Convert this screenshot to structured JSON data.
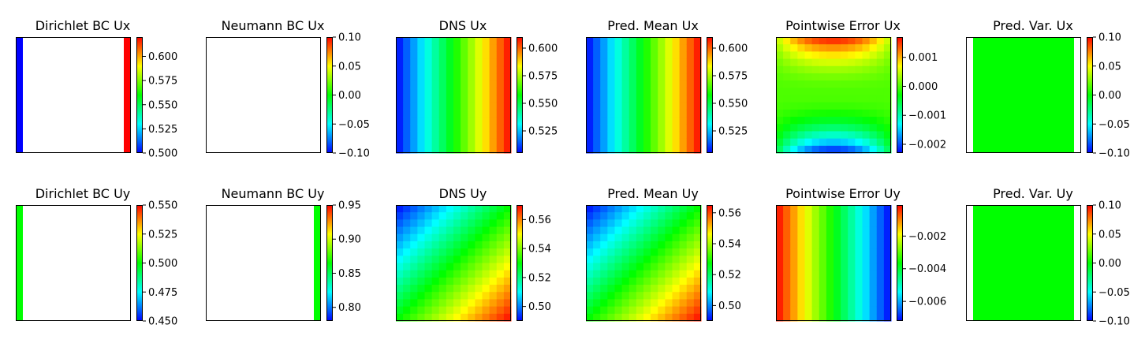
{
  "colormap": [
    "#0000ff",
    "#00ffff",
    "#00ff00",
    "#ffff00",
    "#ff0000"
  ],
  "chart_data": [
    {
      "type": "heatmap",
      "title": "Dirichlet BC Ux",
      "field": "dirichlet",
      "vmin": 0.5,
      "vmax": 0.62,
      "ticks": [
        "0.500",
        "0.525",
        "0.550",
        "0.575",
        "0.600"
      ],
      "tick_values": [
        0.5,
        0.525,
        0.55,
        0.575,
        0.6
      ],
      "left_value": 0.5,
      "right_value": 0.62
    },
    {
      "type": "heatmap",
      "title": "Neumann BC Ux",
      "field": "empty",
      "vmin": -0.1,
      "vmax": 0.1,
      "ticks": [
        "−0.10",
        "−0.05",
        "0.00",
        "0.05",
        "0.10"
      ],
      "tick_values": [
        -0.1,
        -0.05,
        0,
        0.05,
        0.1
      ]
    },
    {
      "type": "heatmap",
      "title": "DNS Ux",
      "field": "ux_dns",
      "vmin": 0.505,
      "vmax": 0.61,
      "ticks": [
        "0.525",
        "0.550",
        "0.575",
        "0.600"
      ],
      "tick_values": [
        0.525,
        0.55,
        0.575,
        0.6
      ],
      "x_from": 0.505,
      "x_to": 0.61
    },
    {
      "type": "heatmap",
      "title": "Pred. Mean Ux",
      "field": "ux_dns",
      "vmin": 0.505,
      "vmax": 0.61,
      "ticks": [
        "0.525",
        "0.550",
        "0.575",
        "0.600"
      ],
      "tick_values": [
        0.525,
        0.55,
        0.575,
        0.6
      ],
      "x_from": 0.505,
      "x_to": 0.61
    },
    {
      "type": "heatmap",
      "title": "Pointwise Error Ux",
      "field": "err_ux",
      "vmin": -0.0023,
      "vmax": 0.0017,
      "ticks": [
        "−0.002",
        "−0.001",
        "0.000",
        "0.001"
      ],
      "tick_values": [
        -0.002,
        -0.001,
        0,
        0.001
      ],
      "top_value": 0.0017,
      "bottom_value": -0.0023
    },
    {
      "type": "heatmap",
      "title": "Pred. Var. Ux",
      "field": "const",
      "vmin": -0.1,
      "vmax": 0.1,
      "const_value": 0,
      "ticks": [
        "−0.10",
        "−0.05",
        "0.00",
        "0.05",
        "0.10"
      ],
      "tick_values": [
        -0.1,
        -0.05,
        0,
        0.05,
        0.1
      ]
    },
    {
      "type": "heatmap",
      "title": "Dirichlet BC Uy",
      "field": "dirichlet_left",
      "vmin": 0.45,
      "vmax": 0.55,
      "ticks": [
        "0.450",
        "0.475",
        "0.500",
        "0.525",
        "0.550"
      ],
      "tick_values": [
        0.45,
        0.475,
        0.5,
        0.525,
        0.55
      ],
      "left_value": 0.5
    },
    {
      "type": "heatmap",
      "title": "Neumann BC Uy",
      "field": "neumann_right",
      "vmin": 0.78,
      "vmax": 0.95,
      "ticks": [
        "0.80",
        "0.85",
        "0.90",
        "0.95"
      ],
      "tick_values": [
        0.8,
        0.85,
        0.9,
        0.95
      ],
      "right_value": 0.865
    },
    {
      "type": "heatmap",
      "title": "DNS Uy",
      "field": "uy_dns",
      "vmin": 0.49,
      "vmax": 0.57,
      "ticks": [
        "0.50",
        "0.52",
        "0.54",
        "0.56"
      ],
      "tick_values": [
        0.5,
        0.52,
        0.54,
        0.56
      ],
      "corner_min": 0.49,
      "corner_max": 0.57
    },
    {
      "type": "heatmap",
      "title": "Pred. Mean Uy",
      "field": "uy_dns",
      "vmin": 0.49,
      "vmax": 0.565,
      "ticks": [
        "0.50",
        "0.52",
        "0.54",
        "0.56"
      ],
      "tick_values": [
        0.5,
        0.52,
        0.54,
        0.56
      ],
      "corner_min": 0.49,
      "corner_max": 0.565
    },
    {
      "type": "heatmap",
      "title": "Pointwise Error Uy",
      "field": "err_uy",
      "vmin": -0.0072,
      "vmax": -0.0001,
      "ticks": [
        "−0.006",
        "−0.004",
        "−0.002"
      ],
      "tick_values": [
        -0.006,
        -0.004,
        -0.002
      ],
      "left_value": -0.0001,
      "right_value": -0.0072
    },
    {
      "type": "heatmap",
      "title": "Pred. Var. Uy",
      "field": "const",
      "vmin": -0.1,
      "vmax": 0.1,
      "const_value": 0,
      "ticks": [
        "−0.10",
        "−0.05",
        "0.00",
        "0.05",
        "0.10"
      ],
      "tick_values": [
        -0.1,
        -0.05,
        0,
        0.05,
        0.1
      ]
    }
  ]
}
